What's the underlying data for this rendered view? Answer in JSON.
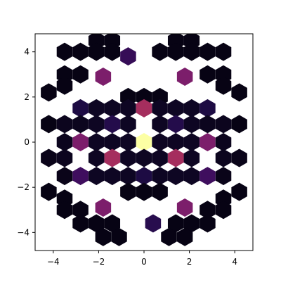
{
  "chart_data": {
    "type": "heatmap",
    "subtype": "hexbin",
    "title": "",
    "xlabel": "",
    "ylabel": "",
    "xlim": [
      -4.8,
      4.8
    ],
    "ylim": [
      -4.8,
      4.8
    ],
    "xticks": [
      -4,
      -2,
      0,
      2,
      4
    ],
    "yticks": [
      -4,
      -2,
      0,
      2,
      4
    ],
    "xtick_labels": [
      "−4",
      "−2",
      "0",
      "2",
      "4"
    ],
    "ytick_labels": [
      "−4",
      "−2",
      "0",
      "2",
      "4"
    ],
    "grid": false,
    "legend": "none",
    "colormap": "inferno",
    "value_range": [
      0,
      1
    ],
    "hex_grid": {
      "gridsize_x": 15,
      "col_spacing_data": 1.4,
      "row_spacing_data": 1.0
    },
    "cells": [
      {
        "x": -2.1,
        "y": 4.5,
        "v": 0.03
      },
      {
        "x": -1.4,
        "y": 4.5,
        "v": 0.03
      },
      {
        "x": 1.4,
        "y": 4.5,
        "v": 0.03
      },
      {
        "x": 2.1,
        "y": 4.5,
        "v": 0.03
      },
      {
        "x": -3.5,
        "y": 4.0,
        "v": 0.03
      },
      {
        "x": -2.8,
        "y": 4.0,
        "v": 0.03
      },
      {
        "x": -2.1,
        "y": 4.0,
        "v": 0.03
      },
      {
        "x": -1.4,
        "y": 4.0,
        "v": 0.03
      },
      {
        "x": -0.7,
        "y": 3.8,
        "v": 0.18
      },
      {
        "x": 0.7,
        "y": 4.0,
        "v": 0.03
      },
      {
        "x": 1.4,
        "y": 4.0,
        "v": 0.03
      },
      {
        "x": 2.1,
        "y": 4.0,
        "v": 0.03
      },
      {
        "x": 2.8,
        "y": 4.0,
        "v": 0.03
      },
      {
        "x": 3.5,
        "y": 4.0,
        "v": 0.03
      },
      {
        "x": -3.5,
        "y": 3.0,
        "v": 0.03
      },
      {
        "x": -2.8,
        "y": 3.0,
        "v": 0.03
      },
      {
        "x": -1.8,
        "y": 2.9,
        "v": 0.35
      },
      {
        "x": 1.8,
        "y": 2.9,
        "v": 0.35
      },
      {
        "x": 2.8,
        "y": 3.0,
        "v": 0.03
      },
      {
        "x": 3.5,
        "y": 3.0,
        "v": 0.03
      },
      {
        "x": -4.2,
        "y": 2.2,
        "v": 0.03
      },
      {
        "x": -3.5,
        "y": 2.5,
        "v": 0.03
      },
      {
        "x": 3.5,
        "y": 2.5,
        "v": 0.03
      },
      {
        "x": 4.2,
        "y": 2.2,
        "v": 0.03
      },
      {
        "x": -2.8,
        "y": 1.5,
        "v": 0.12
      },
      {
        "x": -2.1,
        "y": 1.5,
        "v": 0.06
      },
      {
        "x": -1.4,
        "y": 1.5,
        "v": 0.06
      },
      {
        "x": -0.7,
        "y": 2.0,
        "v": 0.03
      },
      {
        "x": 0.0,
        "y": 2.0,
        "v": 0.03
      },
      {
        "x": 0.7,
        "y": 2.0,
        "v": 0.03
      },
      {
        "x": -0.7,
        "y": 1.5,
        "v": 0.06
      },
      {
        "x": 0.0,
        "y": 1.5,
        "v": 0.45
      },
      {
        "x": 0.7,
        "y": 1.5,
        "v": 0.06
      },
      {
        "x": 1.4,
        "y": 1.5,
        "v": 0.06
      },
      {
        "x": 2.1,
        "y": 1.5,
        "v": 0.06
      },
      {
        "x": 2.8,
        "y": 1.5,
        "v": 0.12
      },
      {
        "x": -4.2,
        "y": 0.8,
        "v": 0.03
      },
      {
        "x": -3.5,
        "y": 0.8,
        "v": 0.05
      },
      {
        "x": -2.8,
        "y": 0.8,
        "v": 0.05
      },
      {
        "x": -2.1,
        "y": 0.8,
        "v": 0.06
      },
      {
        "x": -1.4,
        "y": 0.8,
        "v": 0.14
      },
      {
        "x": -0.7,
        "y": 0.8,
        "v": 0.06
      },
      {
        "x": 0.7,
        "y": 0.8,
        "v": 0.06
      },
      {
        "x": 1.4,
        "y": 0.8,
        "v": 0.14
      },
      {
        "x": 2.1,
        "y": 0.8,
        "v": 0.06
      },
      {
        "x": 2.8,
        "y": 0.8,
        "v": 0.05
      },
      {
        "x": 3.5,
        "y": 0.8,
        "v": 0.05
      },
      {
        "x": 4.2,
        "y": 0.8,
        "v": 0.03
      },
      {
        "x": -2.8,
        "y": 0.0,
        "v": 0.35
      },
      {
        "x": -2.1,
        "y": 0.0,
        "v": 0.06
      },
      {
        "x": -1.4,
        "y": 0.0,
        "v": 0.06
      },
      {
        "x": -0.7,
        "y": 0.0,
        "v": 0.06
      },
      {
        "x": 0.0,
        "y": 0.0,
        "v": 1.0
      },
      {
        "x": 0.7,
        "y": 0.0,
        "v": 0.06
      },
      {
        "x": 1.4,
        "y": 0.0,
        "v": 0.06
      },
      {
        "x": 2.1,
        "y": 0.0,
        "v": 0.06
      },
      {
        "x": 2.8,
        "y": 0.0,
        "v": 0.35
      },
      {
        "x": -3.5,
        "y": 0.0,
        "v": 0.05
      },
      {
        "x": 3.5,
        "y": 0.0,
        "v": 0.05
      },
      {
        "x": -4.2,
        "y": -0.7,
        "v": 0.04
      },
      {
        "x": -3.5,
        "y": -0.7,
        "v": 0.05
      },
      {
        "x": -2.1,
        "y": -0.7,
        "v": 0.06
      },
      {
        "x": -1.4,
        "y": -0.7,
        "v": 0.45
      },
      {
        "x": -0.7,
        "y": -0.7,
        "v": 0.06
      },
      {
        "x": 0.0,
        "y": -0.7,
        "v": 0.06
      },
      {
        "x": 0.7,
        "y": -0.7,
        "v": 0.06
      },
      {
        "x": 1.4,
        "y": -0.7,
        "v": 0.45
      },
      {
        "x": 2.1,
        "y": -0.7,
        "v": 0.06
      },
      {
        "x": 3.5,
        "y": -0.7,
        "v": 0.05
      },
      {
        "x": 4.2,
        "y": -0.7,
        "v": 0.04
      },
      {
        "x": -2.8,
        "y": -1.5,
        "v": 0.2
      },
      {
        "x": -2.1,
        "y": -1.5,
        "v": 0.06
      },
      {
        "x": -1.4,
        "y": -1.5,
        "v": 0.06
      },
      {
        "x": -0.7,
        "y": -1.5,
        "v": 0.06
      },
      {
        "x": 0.0,
        "y": -1.5,
        "v": 0.12
      },
      {
        "x": 0.7,
        "y": -1.5,
        "v": 0.06
      },
      {
        "x": 1.4,
        "y": -1.5,
        "v": 0.06
      },
      {
        "x": 2.1,
        "y": -1.5,
        "v": 0.06
      },
      {
        "x": 2.8,
        "y": -1.5,
        "v": 0.2
      },
      {
        "x": -3.5,
        "y": -1.5,
        "v": 0.04
      },
      {
        "x": 3.5,
        "y": -1.5,
        "v": 0.04
      },
      {
        "x": -0.7,
        "y": -2.2,
        "v": 0.03
      },
      {
        "x": 0.0,
        "y": -2.2,
        "v": 0.03
      },
      {
        "x": 0.7,
        "y": -2.2,
        "v": 0.03
      },
      {
        "x": -4.2,
        "y": -2.2,
        "v": 0.03
      },
      {
        "x": -3.5,
        "y": -2.5,
        "v": 0.03
      },
      {
        "x": 3.5,
        "y": -2.5,
        "v": 0.03
      },
      {
        "x": 4.2,
        "y": -2.2,
        "v": 0.03
      },
      {
        "x": -3.5,
        "y": -3.0,
        "v": 0.03
      },
      {
        "x": -2.8,
        "y": -3.0,
        "v": 0.03
      },
      {
        "x": -1.8,
        "y": -2.9,
        "v": 0.35
      },
      {
        "x": 1.8,
        "y": -2.9,
        "v": 0.35
      },
      {
        "x": 2.8,
        "y": -3.0,
        "v": 0.03
      },
      {
        "x": 3.5,
        "y": -3.0,
        "v": 0.03
      },
      {
        "x": -2.8,
        "y": -3.6,
        "v": 0.03
      },
      {
        "x": -2.1,
        "y": -3.6,
        "v": 0.03
      },
      {
        "x": -1.4,
        "y": -3.6,
        "v": 0.03
      },
      {
        "x": 0.4,
        "y": -3.6,
        "v": 0.15
      },
      {
        "x": 1.4,
        "y": -3.6,
        "v": 0.03
      },
      {
        "x": 2.1,
        "y": -3.6,
        "v": 0.03
      },
      {
        "x": 2.8,
        "y": -3.6,
        "v": 0.03
      },
      {
        "x": -1.8,
        "y": -4.2,
        "v": 0.03
      },
      {
        "x": -1.1,
        "y": -4.2,
        "v": 0.03
      },
      {
        "x": 1.1,
        "y": -4.2,
        "v": 0.03
      },
      {
        "x": 1.8,
        "y": -4.2,
        "v": 0.03
      }
    ]
  }
}
